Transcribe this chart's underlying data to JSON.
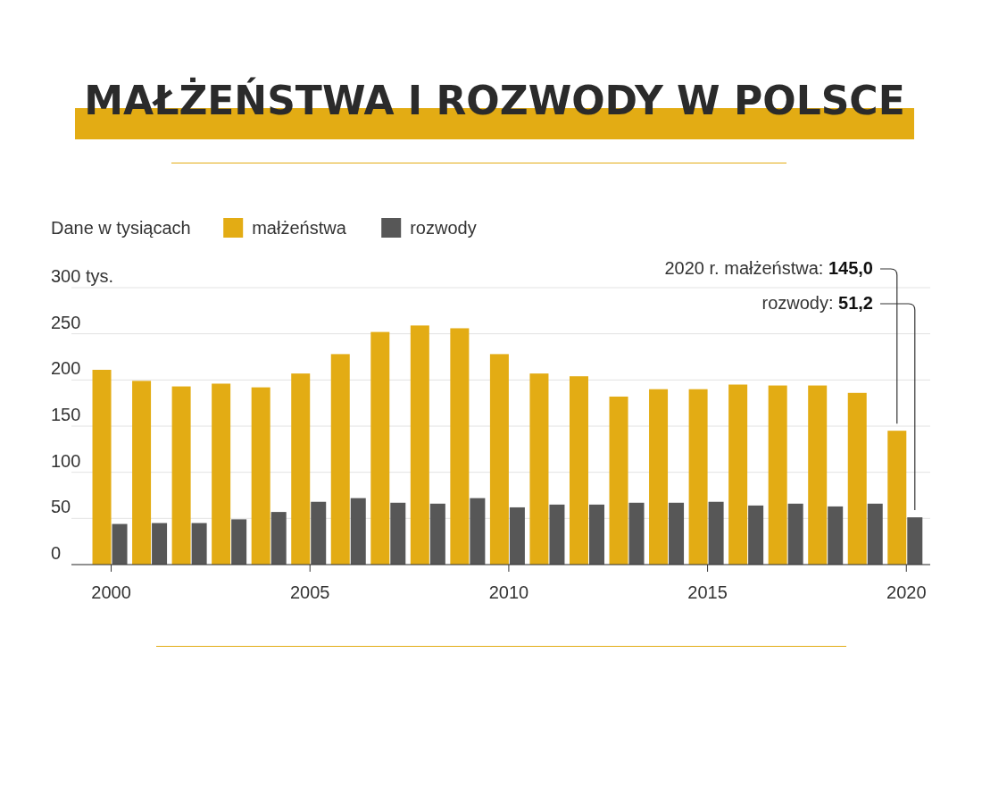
{
  "chart_data": {
    "type": "bar",
    "title": "MAŁŻEŃSTWA I ROZWODY W POLSCE",
    "legend_title": "Dane w tysiącach",
    "x": [
      2000,
      2001,
      2002,
      2003,
      2004,
      2005,
      2006,
      2007,
      2008,
      2009,
      2010,
      2011,
      2012,
      2013,
      2014,
      2015,
      2016,
      2017,
      2018,
      2019,
      2020
    ],
    "series": [
      {
        "name": "małżeństwa",
        "color": "#e3ac14",
        "values": [
          211,
          199,
          193,
          196,
          192,
          207,
          228,
          252,
          259,
          256,
          228,
          207,
          204,
          182,
          190,
          190,
          195,
          194,
          194,
          186,
          145
        ]
      },
      {
        "name": "rozwody",
        "color": "#575757",
        "values": [
          44,
          45,
          45,
          49,
          57,
          68,
          72,
          67,
          66,
          72,
          62,
          65,
          65,
          67,
          67,
          68,
          64,
          66,
          63,
          66,
          51.2
        ]
      }
    ],
    "xlim": [
      1999,
      2020.6
    ],
    "xticks": [
      2000,
      2005,
      2010,
      2015,
      2020
    ],
    "ylim": [
      0,
      300
    ],
    "yticks": [
      0,
      50,
      100,
      150,
      200,
      250,
      {
        "value": 300,
        "label": "300 tys."
      }
    ],
    "grid": "y",
    "legend": "top left",
    "annotations": [
      "2020 r. małżeństwa: 145,0",
      "rozwody: 51,2"
    ]
  }
}
